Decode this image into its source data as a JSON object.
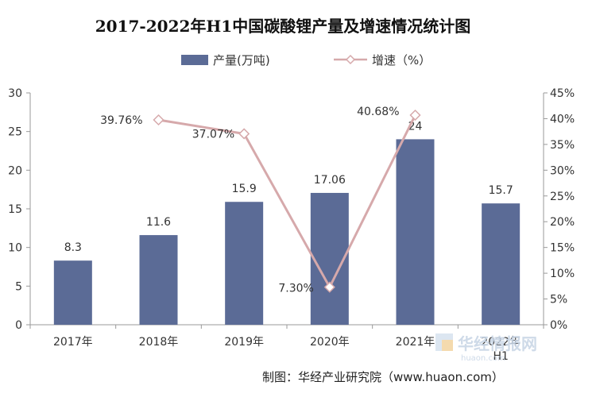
{
  "chart_data": {
    "type": "bar",
    "title": "2017-2022年H1中国碳酸锂产量及增速情况统计图",
    "categories": [
      "2017年",
      "2018年",
      "2019年",
      "2020年",
      "2021年",
      "2022年H1"
    ],
    "series": [
      {
        "name": "产量(万吨)",
        "type": "bar",
        "axis": "left",
        "color": "#5b6b96",
        "values": [
          8.3,
          11.6,
          15.9,
          17.06,
          24,
          15.7
        ],
        "labels": [
          "8.3",
          "11.6",
          "15.9",
          "17.06",
          "24",
          "15.7"
        ]
      },
      {
        "name": "增速（%）",
        "type": "line",
        "axis": "right",
        "color": "#d6a9ab",
        "values": [
          null,
          39.76,
          37.07,
          7.3,
          40.68,
          null
        ],
        "labels": [
          "",
          "39.76%",
          "37.07%",
          "7.30%",
          "40.68%",
          ""
        ]
      }
    ],
    "ylim_left": [
      0,
      30
    ],
    "yticks_left": [
      "0",
      "5",
      "10",
      "15",
      "20",
      "25",
      "30"
    ],
    "ylim_right": [
      0,
      45
    ],
    "yticks_right": [
      "0%",
      "5%",
      "10%",
      "15%",
      "20%",
      "25%",
      "30%",
      "35%",
      "40%",
      "45%"
    ],
    "legend_position": "top-center",
    "grid": false
  },
  "source_text": "制图：华经产业研究院（www.huaon.com）",
  "watermark": {
    "text": "华经情报网",
    "sub_text": "huaon.com"
  }
}
